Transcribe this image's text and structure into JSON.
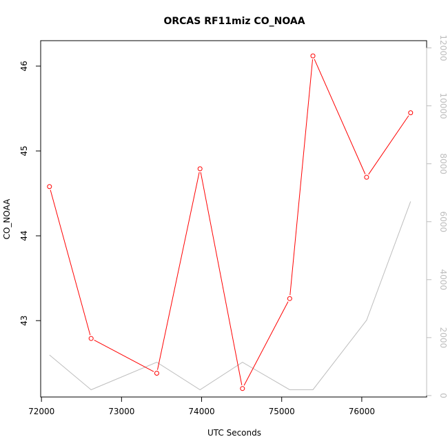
{
  "chart_data": {
    "type": "line",
    "title": "ORCAS RF11miz CO_NOAA",
    "xlabel": "UTC Seconds",
    "ylabel": "CO_NOAA",
    "xlim": [
      71990,
      76810
    ],
    "ylim": [
      42.1,
      46.3
    ],
    "y2lim": [
      -50,
      12250
    ],
    "x_ticks": [
      72000,
      73000,
      74000,
      75000,
      76000
    ],
    "y_ticks": [
      43,
      44,
      45,
      46
    ],
    "y2_ticks": [
      0,
      2000,
      4000,
      6000,
      8000,
      10000,
      12000
    ],
    "grid": false,
    "legend": "none",
    "series": [
      {
        "axis": "left",
        "color": "#ff0000",
        "marker": "open-circle",
        "x": [
          72100,
          72620,
          73440,
          73980,
          74510,
          75100,
          75390,
          76060,
          76610
        ],
        "values": [
          44.58,
          42.79,
          42.38,
          44.79,
          42.2,
          43.26,
          46.12,
          44.69,
          45.45
        ]
      },
      {
        "axis": "right",
        "color": "#bdbdbd",
        "marker": "none",
        "x": [
          72100,
          72620,
          73440,
          73980,
          74510,
          75100,
          75390,
          76060,
          76610
        ],
        "values": [
          1400,
          200,
          1150,
          200,
          1150,
          200,
          200,
          2600,
          6700
        ]
      }
    ]
  }
}
